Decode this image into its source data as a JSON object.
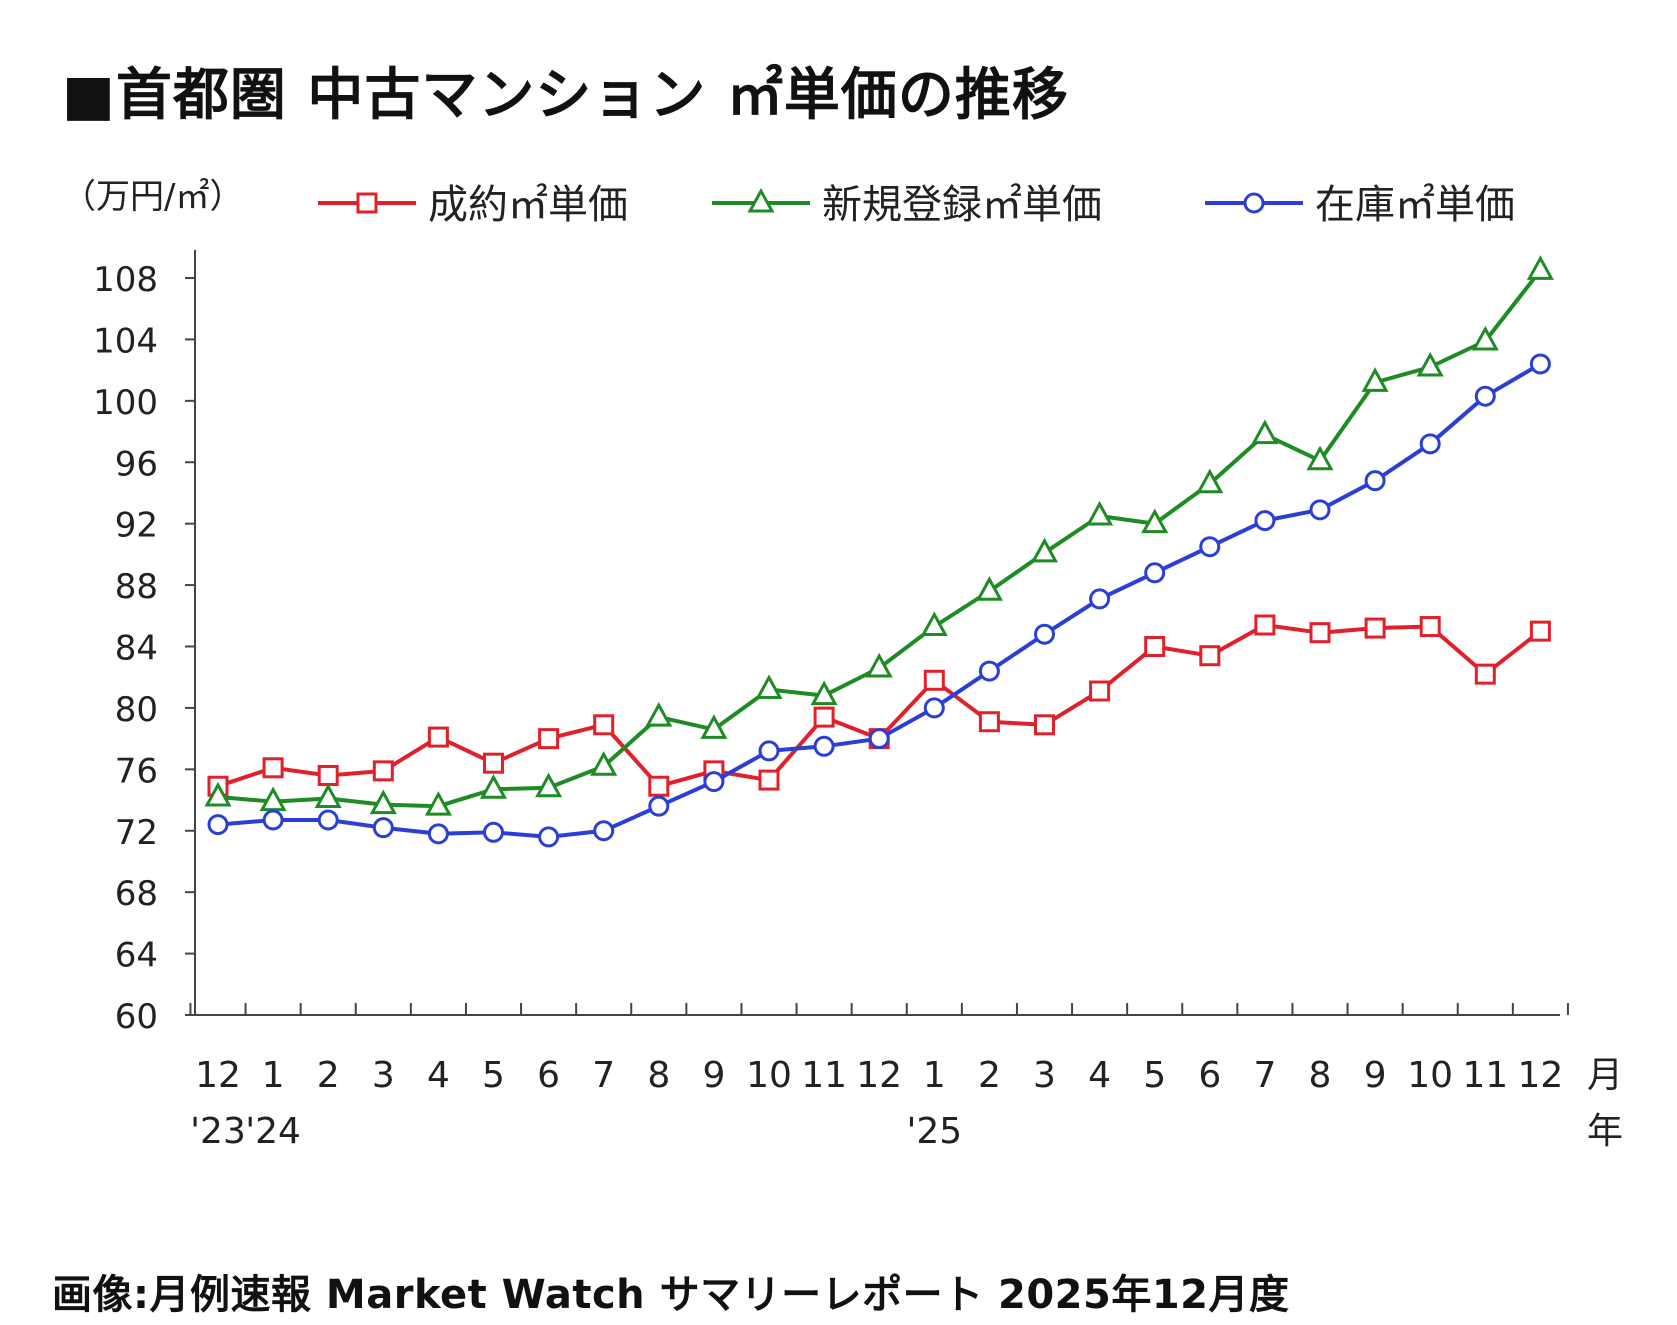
{
  "title": "■首都圏 中古マンション ㎡単価の推移",
  "caption": "画像:月例速報 Market Watch サマリーレポート 2025年12月度",
  "chart_data": {
    "type": "line",
    "unit_label": "（万円/㎡）",
    "categories": [
      "12",
      "1",
      "2",
      "3",
      "4",
      "5",
      "6",
      "7",
      "8",
      "9",
      "10",
      "11",
      "12",
      "1",
      "2",
      "3",
      "4",
      "5",
      "6",
      "7",
      "8",
      "9",
      "10",
      "11",
      "12"
    ],
    "year_labels": [
      {
        "index": 0,
        "text": "'23"
      },
      {
        "index": 1,
        "text": "'24"
      },
      {
        "index": 13,
        "text": "'25"
      }
    ],
    "x_unit_month": "月",
    "x_unit_year": "年",
    "ylim": [
      60,
      110
    ],
    "yticks": [
      60,
      64,
      68,
      72,
      76,
      80,
      84,
      88,
      92,
      96,
      100,
      104,
      108
    ],
    "grid": false,
    "legend_position": "top",
    "series": [
      {
        "name": "成約㎡単価",
        "color": "#e0202a",
        "marker": "square",
        "values": [
          74.9,
          76.1,
          75.6,
          75.9,
          78.1,
          76.4,
          78.0,
          78.9,
          74.9,
          75.9,
          75.3,
          79.4,
          78.0,
          81.8,
          79.1,
          78.9,
          81.1,
          84.0,
          83.4,
          85.4,
          84.9,
          85.2,
          85.3,
          82.2,
          85.0
        ]
      },
      {
        "name": "新規登録㎡単価",
        "color": "#1f8b24",
        "marker": "triangle",
        "values": [
          74.2,
          73.9,
          74.1,
          73.7,
          73.6,
          74.7,
          74.8,
          76.2,
          79.4,
          78.6,
          81.2,
          80.8,
          82.6,
          85.3,
          87.6,
          90.1,
          92.5,
          92.0,
          94.6,
          97.8,
          96.1,
          101.2,
          102.2,
          103.9,
          108.5
        ]
      },
      {
        "name": "在庫㎡単価",
        "color": "#2b3fd6",
        "marker": "circle",
        "values": [
          72.4,
          72.7,
          72.7,
          72.2,
          71.8,
          71.9,
          71.6,
          72.0,
          73.6,
          75.2,
          77.2,
          77.5,
          78.0,
          80.0,
          82.4,
          84.8,
          87.1,
          88.8,
          90.5,
          92.2,
          92.9,
          94.8,
          97.2,
          100.3,
          102.4
        ]
      }
    ]
  }
}
